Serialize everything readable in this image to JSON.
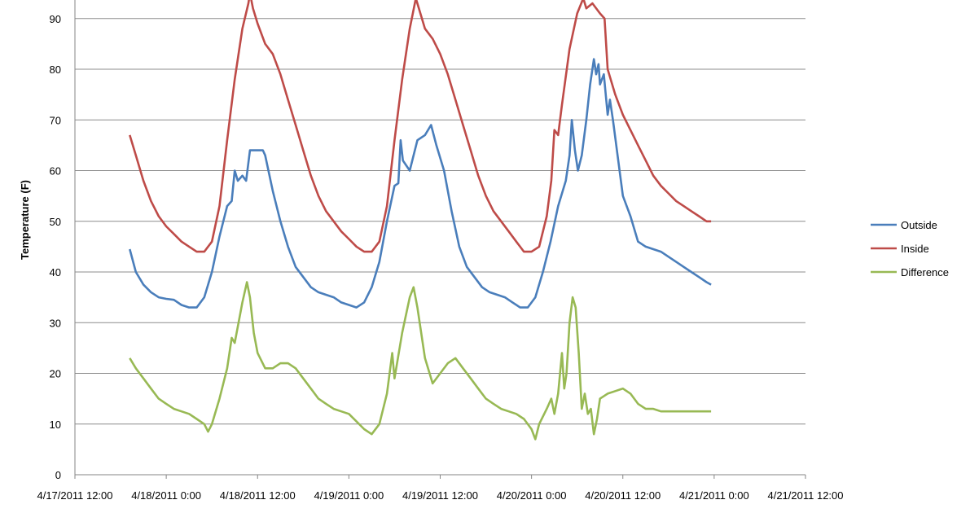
{
  "chart_data": {
    "type": "line",
    "title": "",
    "xlabel": "",
    "ylabel": "Temperature (F)",
    "ylim": [
      0,
      95
    ],
    "yticks": [
      0,
      10,
      20,
      30,
      40,
      50,
      60,
      70,
      80,
      90
    ],
    "grid": true,
    "legend_position": "right",
    "x_tick_labels": [
      "4/17/2011 12:00",
      "4/18/2011 0:00",
      "4/18/2011 12:00",
      "4/19/2011 0:00",
      "4/19/2011 12:00",
      "4/20/2011 0:00",
      "4/20/2011 12:00",
      "4/21/2011 0:00",
      "4/21/2011 12:00"
    ],
    "x_unit": "hours since 4/17/2011 12:00",
    "series": [
      {
        "name": "Outside",
        "color": "#4a7ebb",
        "points": [
          [
            7.2,
            44.5
          ],
          [
            8,
            40
          ],
          [
            9,
            37.5
          ],
          [
            10,
            36
          ],
          [
            11,
            35
          ],
          [
            12,
            34.7
          ],
          [
            13,
            34.5
          ],
          [
            14,
            33.5
          ],
          [
            15,
            33
          ],
          [
            16,
            33
          ],
          [
            17,
            35
          ],
          [
            18,
            40
          ],
          [
            19,
            47
          ],
          [
            20,
            53
          ],
          [
            20.6,
            54
          ],
          [
            21,
            60
          ],
          [
            21.4,
            58
          ],
          [
            22,
            59
          ],
          [
            22.5,
            58
          ],
          [
            23,
            64
          ],
          [
            24,
            64
          ],
          [
            24.7,
            64
          ],
          [
            25,
            63
          ],
          [
            26,
            56
          ],
          [
            27,
            50
          ],
          [
            28,
            45
          ],
          [
            29,
            41
          ],
          [
            30,
            39
          ],
          [
            31,
            37
          ],
          [
            32,
            36
          ],
          [
            33,
            35.5
          ],
          [
            34,
            35
          ],
          [
            35,
            34
          ],
          [
            36,
            33.5
          ],
          [
            37,
            33
          ],
          [
            38,
            34
          ],
          [
            39,
            37
          ],
          [
            40,
            42
          ],
          [
            41,
            50
          ],
          [
            42,
            57
          ],
          [
            42.5,
            57.5
          ],
          [
            42.8,
            66
          ],
          [
            43.1,
            62
          ],
          [
            44,
            60
          ],
          [
            45,
            66
          ],
          [
            46,
            67
          ],
          [
            46.8,
            69
          ],
          [
            47.5,
            65
          ],
          [
            48.5,
            60
          ],
          [
            49.5,
            52
          ],
          [
            50.5,
            45
          ],
          [
            51.5,
            41
          ],
          [
            52.5,
            39
          ],
          [
            53.5,
            37
          ],
          [
            54.5,
            36
          ],
          [
            55.5,
            35.5
          ],
          [
            56.5,
            35
          ],
          [
            57.5,
            34
          ],
          [
            58.5,
            33
          ],
          [
            59.5,
            33
          ],
          [
            60.5,
            35
          ],
          [
            61.5,
            40
          ],
          [
            62.5,
            46
          ],
          [
            63.5,
            53
          ],
          [
            64.5,
            58
          ],
          [
            65,
            63
          ],
          [
            65.3,
            70
          ],
          [
            65.7,
            64
          ],
          [
            66.1,
            60
          ],
          [
            66.6,
            63
          ],
          [
            67.2,
            70
          ],
          [
            67.7,
            77
          ],
          [
            68.2,
            82
          ],
          [
            68.5,
            79
          ],
          [
            68.8,
            81
          ],
          [
            69,
            77
          ],
          [
            69.5,
            79
          ],
          [
            70,
            71
          ],
          [
            70.3,
            74
          ],
          [
            70.7,
            70
          ],
          [
            71.4,
            62
          ],
          [
            72,
            55
          ],
          [
            73,
            51
          ],
          [
            74,
            46
          ],
          [
            75,
            45
          ],
          [
            76,
            44.5
          ],
          [
            77,
            44
          ],
          [
            78,
            43
          ],
          [
            79,
            42
          ],
          [
            80,
            41
          ],
          [
            81,
            40
          ],
          [
            82,
            39
          ],
          [
            83,
            38
          ],
          [
            83.6,
            37.5
          ]
        ]
      },
      {
        "name": "Inside",
        "color": "#be4b48",
        "points": [
          [
            7.2,
            67
          ],
          [
            8,
            63
          ],
          [
            9,
            58
          ],
          [
            10,
            54
          ],
          [
            11,
            51
          ],
          [
            12,
            49
          ],
          [
            13,
            47.5
          ],
          [
            14,
            46
          ],
          [
            15,
            45
          ],
          [
            16,
            44
          ],
          [
            17,
            44
          ],
          [
            18,
            46
          ],
          [
            19,
            53
          ],
          [
            20,
            66
          ],
          [
            21,
            78
          ],
          [
            22,
            88
          ],
          [
            22.8,
            93
          ],
          [
            23,
            95
          ],
          [
            23.4,
            92
          ],
          [
            24,
            89
          ],
          [
            25,
            85
          ],
          [
            26,
            83
          ],
          [
            27,
            79
          ],
          [
            28,
            74
          ],
          [
            29,
            69
          ],
          [
            30,
            64
          ],
          [
            31,
            59
          ],
          [
            32,
            55
          ],
          [
            33,
            52
          ],
          [
            34,
            50
          ],
          [
            35,
            48
          ],
          [
            36,
            46.5
          ],
          [
            37,
            45
          ],
          [
            38,
            44
          ],
          [
            39,
            44
          ],
          [
            40,
            46
          ],
          [
            41,
            53
          ],
          [
            42,
            66
          ],
          [
            43,
            78
          ],
          [
            44,
            88
          ],
          [
            44.8,
            94
          ],
          [
            45.2,
            92
          ],
          [
            46,
            88
          ],
          [
            47,
            86
          ],
          [
            48,
            83
          ],
          [
            49,
            79
          ],
          [
            50,
            74
          ],
          [
            51,
            69
          ],
          [
            52,
            64
          ],
          [
            53,
            59
          ],
          [
            54,
            55
          ],
          [
            55,
            52
          ],
          [
            56,
            50
          ],
          [
            57,
            48
          ],
          [
            58,
            46
          ],
          [
            59,
            44
          ],
          [
            60,
            44
          ],
          [
            61,
            45
          ],
          [
            62,
            51
          ],
          [
            62.6,
            58
          ],
          [
            63,
            68
          ],
          [
            63.5,
            67
          ],
          [
            64,
            73
          ],
          [
            65,
            84
          ],
          [
            66,
            91
          ],
          [
            66.8,
            94
          ],
          [
            67.2,
            92
          ],
          [
            68,
            93
          ],
          [
            69,
            91
          ],
          [
            69.6,
            90
          ],
          [
            70,
            80
          ],
          [
            71,
            75
          ],
          [
            72,
            71
          ],
          [
            73,
            68
          ],
          [
            74,
            65
          ],
          [
            75,
            62
          ],
          [
            76,
            59
          ],
          [
            77,
            57
          ],
          [
            78,
            55.5
          ],
          [
            79,
            54
          ],
          [
            80,
            53
          ],
          [
            81,
            52
          ],
          [
            82,
            51
          ],
          [
            83,
            50
          ],
          [
            83.6,
            50
          ]
        ]
      },
      {
        "name": "Difference",
        "color": "#98b954",
        "points": [
          [
            7.2,
            23
          ],
          [
            8,
            21
          ],
          [
            9,
            19
          ],
          [
            10,
            17
          ],
          [
            11,
            15
          ],
          [
            12,
            14
          ],
          [
            13,
            13
          ],
          [
            14,
            12.5
          ],
          [
            15,
            12
          ],
          [
            16,
            11
          ],
          [
            17,
            10
          ],
          [
            17.5,
            8.5
          ],
          [
            18,
            10
          ],
          [
            19,
            15
          ],
          [
            20,
            21
          ],
          [
            20.6,
            27
          ],
          [
            21,
            26
          ],
          [
            22,
            34
          ],
          [
            22.6,
            38
          ],
          [
            23,
            35
          ],
          [
            23.5,
            28
          ],
          [
            24,
            24
          ],
          [
            25,
            21
          ],
          [
            26,
            21
          ],
          [
            27,
            22
          ],
          [
            28,
            22
          ],
          [
            29,
            21
          ],
          [
            30,
            19
          ],
          [
            31,
            17
          ],
          [
            32,
            15
          ],
          [
            33,
            14
          ],
          [
            34,
            13
          ],
          [
            35,
            12.5
          ],
          [
            36,
            12
          ],
          [
            37,
            10.5
          ],
          [
            38,
            9
          ],
          [
            39,
            8
          ],
          [
            40,
            10
          ],
          [
            41,
            16
          ],
          [
            41.7,
            24
          ],
          [
            42,
            19
          ],
          [
            43,
            28
          ],
          [
            44,
            35
          ],
          [
            44.5,
            37
          ],
          [
            45,
            33
          ],
          [
            46,
            23
          ],
          [
            47,
            18
          ],
          [
            48,
            20
          ],
          [
            49,
            22
          ],
          [
            50,
            23
          ],
          [
            51,
            21
          ],
          [
            52,
            19
          ],
          [
            53,
            17
          ],
          [
            54,
            15
          ],
          [
            55,
            14
          ],
          [
            56,
            13
          ],
          [
            57,
            12.5
          ],
          [
            58,
            12
          ],
          [
            59,
            11
          ],
          [
            60,
            9
          ],
          [
            60.5,
            7
          ],
          [
            61,
            10
          ],
          [
            62,
            13
          ],
          [
            62.6,
            15
          ],
          [
            63,
            12
          ],
          [
            63.5,
            16
          ],
          [
            64,
            24
          ],
          [
            64.3,
            17
          ],
          [
            64.6,
            20
          ],
          [
            65,
            30
          ],
          [
            65.4,
            35
          ],
          [
            65.8,
            33
          ],
          [
            66.2,
            24
          ],
          [
            66.6,
            13
          ],
          [
            67,
            16
          ],
          [
            67.4,
            12
          ],
          [
            67.8,
            13
          ],
          [
            68.2,
            8
          ],
          [
            68.6,
            11
          ],
          [
            69,
            15
          ],
          [
            70,
            16
          ],
          [
            71,
            16.5
          ],
          [
            72,
            17
          ],
          [
            73,
            16
          ],
          [
            74,
            14
          ],
          [
            75,
            13
          ],
          [
            76,
            13
          ],
          [
            77,
            12.5
          ],
          [
            78,
            12.5
          ],
          [
            79,
            12.5
          ],
          [
            80,
            12.5
          ],
          [
            81,
            12.5
          ],
          [
            82,
            12.5
          ],
          [
            83,
            12.5
          ],
          [
            83.6,
            12.5
          ]
        ]
      }
    ]
  }
}
